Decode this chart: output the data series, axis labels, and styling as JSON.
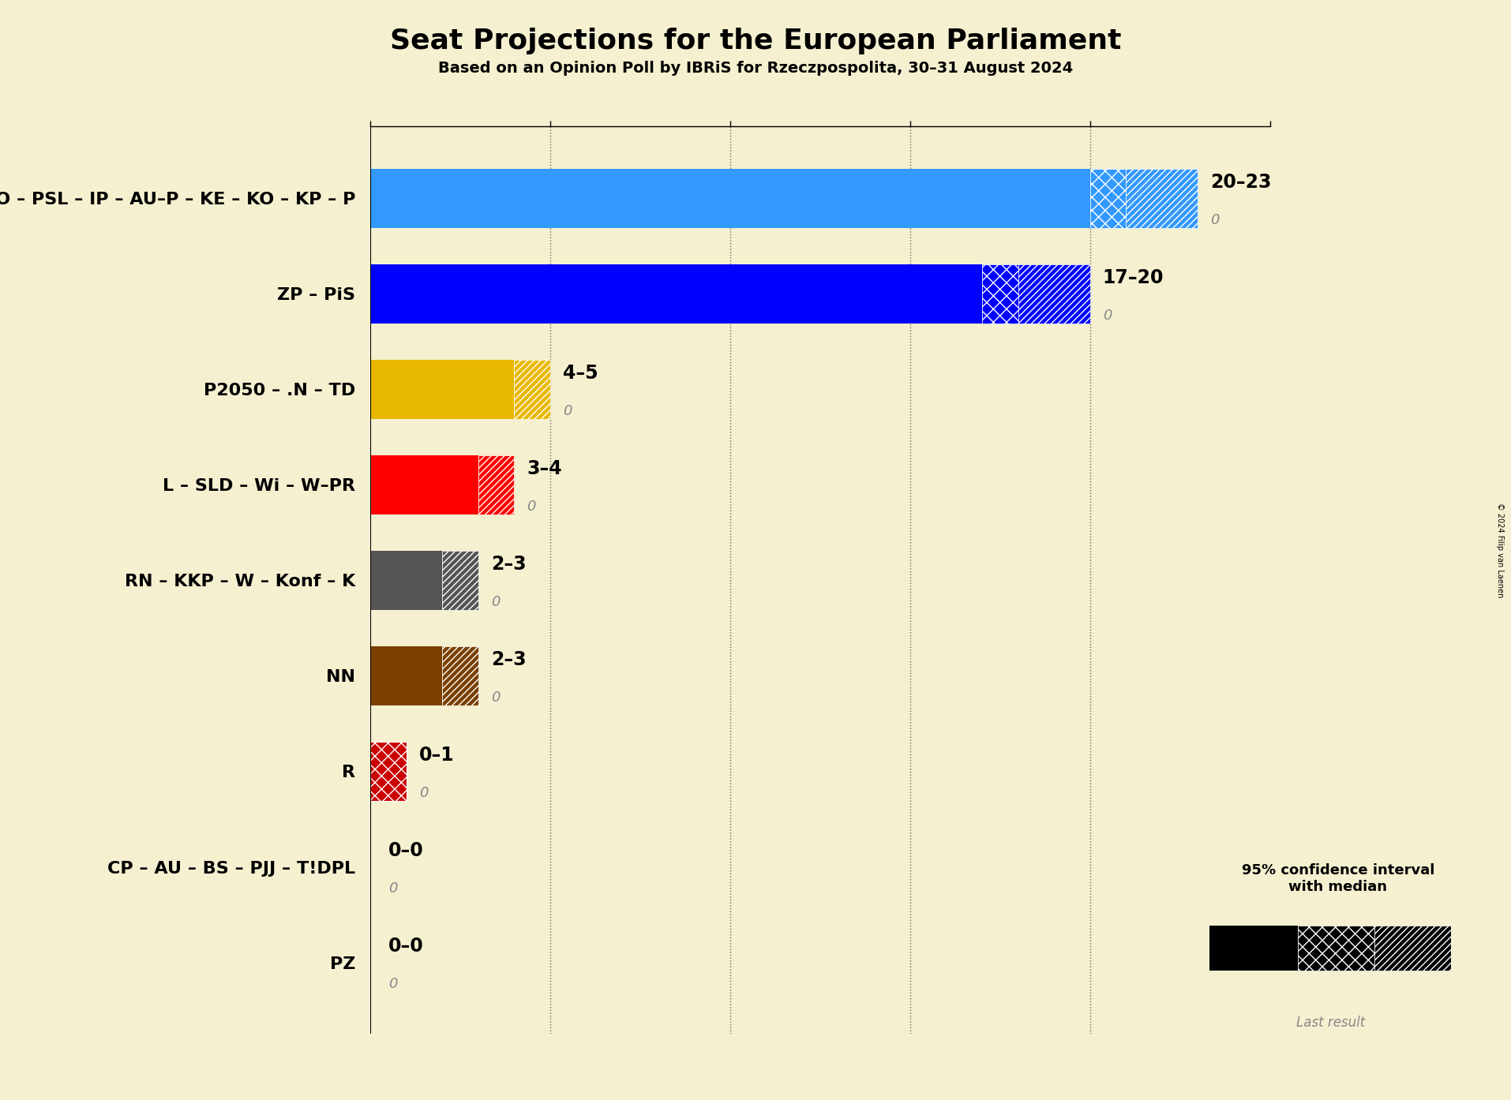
{
  "title": "Seat Projections for the European Parliament",
  "subtitle": "Based on an Opinion Poll by IBRiS for Rzeczpospolita, 30–31 August 2024",
  "copyright": "© 2024 Filip van Laenen",
  "background_color": "#f5f0d0",
  "parties": [
    {
      "label": "PO – PSL – IP – AU–P – KE – KO – KP – P",
      "low": 20,
      "median": 21,
      "high": 23,
      "color": "#3399ff",
      "last": 0,
      "range_text": "20–23"
    },
    {
      "label": "ZP – PiS",
      "low": 17,
      "median": 18,
      "high": 20,
      "color": "#0000ff",
      "last": 0,
      "range_text": "17–20"
    },
    {
      "label": "P2050 – .N – TD",
      "low": 4,
      "median": 4,
      "high": 5,
      "color": "#e8b800",
      "last": 0,
      "range_text": "4–5"
    },
    {
      "label": "L – SLD – Wi – W–PR",
      "low": 3,
      "median": 3,
      "high": 4,
      "color": "#ff0000",
      "last": 0,
      "range_text": "3–4"
    },
    {
      "label": "RN – KKP – W – Konf – K",
      "low": 2,
      "median": 2,
      "high": 3,
      "color": "#555555",
      "last": 0,
      "range_text": "2–3"
    },
    {
      "label": "NN",
      "low": 2,
      "median": 2,
      "high": 3,
      "color": "#7b3f00",
      "last": 0,
      "range_text": "2–3"
    },
    {
      "label": "R",
      "low": 0,
      "median": 0,
      "high": 1,
      "color": "#cc0000",
      "last": 0,
      "range_text": "0–1"
    },
    {
      "label": "CP – AU – BS – PJJ – T!DPL",
      "low": 0,
      "median": 0,
      "high": 0,
      "color": null,
      "last": 0,
      "range_text": "0–0"
    },
    {
      "label": "PZ",
      "low": 0,
      "median": 0,
      "high": 0,
      "color": null,
      "last": 0,
      "range_text": "0–0"
    }
  ],
  "xlim_max": 25,
  "xticks": [
    0,
    5,
    10,
    15,
    20,
    25
  ],
  "dotted_lines": [
    5,
    10,
    15,
    20
  ],
  "bar_height": 0.62,
  "title_fontsize": 26,
  "subtitle_fontsize": 14,
  "label_fontsize": 16,
  "range_fontsize": 17,
  "last_fontsize": 13
}
